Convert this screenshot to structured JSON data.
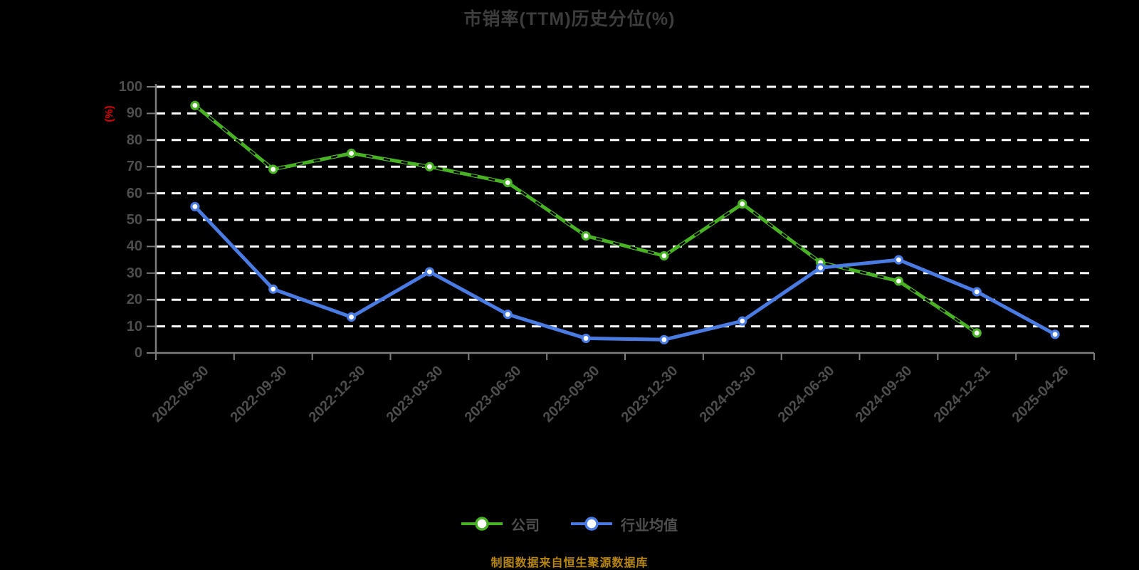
{
  "colors": {
    "background": "#000000",
    "title": "#3d3d3d",
    "axis_line": "#7d7d7d",
    "tick_label": "#4e4e4e",
    "gridline": "#ffffff",
    "y_unit_label": "#e00000",
    "legend_label": "#4e4e4e",
    "footnote": "#b8860f",
    "marker_fill": "#ffffff"
  },
  "chart_data": {
    "type": "line",
    "title": "市销率(TTM)历史分位(%)",
    "y_unit_label": "(%)",
    "xlabel": "",
    "ylabel": "(%)",
    "ylim": [
      0,
      100
    ],
    "ytick_step": 10,
    "grid": "horizontal white dashed lines, black background",
    "legend_position": "bottom-center",
    "categories": [
      "2022-06-30",
      "2022-09-30",
      "2022-12-30",
      "2023-03-30",
      "2023-06-30",
      "2023-09-30",
      "2023-12-30",
      "2024-03-30",
      "2024-06-30",
      "2024-09-30",
      "2024-12-31",
      "2025-04-26"
    ],
    "series": [
      {
        "name": "公司",
        "color": "#48b224",
        "marker": "circle-white-fill",
        "overlay_dash_color": "#000000",
        "values": [
          93,
          69,
          75,
          70,
          64,
          44,
          36.5,
          56,
          34,
          27,
          7.5,
          null
        ]
      },
      {
        "name": "行业均值",
        "color": "#4a7be2",
        "marker": "circle-white-fill",
        "overlay_dash_color": null,
        "values": [
          55,
          24,
          13.5,
          30.5,
          14.5,
          5.5,
          5,
          12,
          32,
          35,
          23,
          7
        ]
      }
    ],
    "footnote": "制图数据来自恒生聚源数据库"
  }
}
